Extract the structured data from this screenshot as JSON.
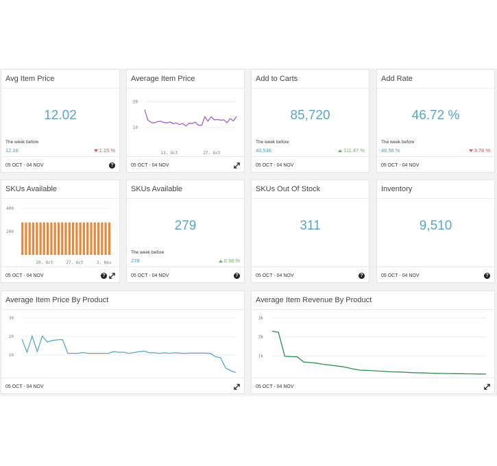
{
  "footer_range": "05 OCT - 04 NOV",
  "week_before_label": "The week before",
  "colors": {
    "accent": "#5aa6c8",
    "down": "#d9534f",
    "up": "#5cb85c",
    "purple": "#a35fd1",
    "orange": "#e8883a",
    "blue": "#5aa6c8",
    "green": "#2e8b4e"
  },
  "cards": {
    "avg_item_price_kpi": {
      "title": "Avg Item Price",
      "value": "12.02",
      "prev": "12.16",
      "delta": "1.15 %"
    },
    "average_item_price_line": {
      "title": "Average Item Price"
    },
    "add_to_carts": {
      "title": "Add to Carts",
      "value": "85,720",
      "prev": "40,536",
      "delta": "111.47 %"
    },
    "add_rate": {
      "title": "Add Rate",
      "value": "46.72 %",
      "prev": "48.56 %",
      "delta": "3.78 %"
    },
    "skus_available_bar": {
      "title": "SKUs Available"
    },
    "skus_available_kpi": {
      "title": "SKUs Available",
      "value": "279",
      "prev": "278",
      "delta": "0.36 %"
    },
    "skus_out_of_stock": {
      "title": "SKUs Out Of Stock",
      "value": "311"
    },
    "inventory": {
      "title": "Inventory",
      "value": "9,510"
    },
    "avg_price_by_product": {
      "title": "Average Item Price By Product"
    },
    "avg_revenue_by_product": {
      "title": "Average Item Revenue By Product"
    }
  },
  "chart_data": [
    {
      "id": "avg-item-price-line",
      "type": "line",
      "x_ticks": [
        "13. Oct",
        "27. Oct"
      ],
      "y_ticks": [
        10,
        20
      ],
      "ylim": [
        5,
        22
      ],
      "values": [
        17,
        13,
        12,
        11.8,
        12.3,
        12.5,
        12.0,
        11.8,
        12.2,
        11.5,
        11.8,
        11.2,
        11.6,
        10.6,
        11.7,
        11.6,
        12.1,
        10.9,
        10.9,
        14.2,
        12.5,
        14.2,
        13.0,
        13.1,
        12.9,
        13.0,
        11.9,
        13.5,
        12.6,
        14.3
      ]
    },
    {
      "id": "skus-available-bar",
      "type": "bar",
      "x_ticks": [
        "20. Oct",
        "27. Oct",
        "3. Nov"
      ],
      "y_ticks": [
        200,
        400
      ],
      "ylim": [
        0,
        400
      ],
      "values": [
        279,
        279,
        279,
        279,
        279,
        279,
        279,
        279,
        279,
        279,
        279,
        279,
        279,
        279,
        279,
        279,
        279,
        279,
        279,
        279,
        279,
        279,
        279,
        279,
        279
      ]
    },
    {
      "id": "avg-price-by-product",
      "type": "line",
      "y_ticks": [
        10,
        20,
        30
      ],
      "ylim": [
        0,
        30
      ],
      "values": [
        18.5,
        11.5,
        20.2,
        11.8,
        20.2,
        17.0,
        17.9,
        18.2,
        18.3,
        10.9,
        10.9,
        10.9,
        11.3,
        10.9,
        10.9,
        10.9,
        10.9,
        10.9,
        11.8,
        11.5,
        11.5,
        10.9,
        11.3,
        11.8,
        12.1,
        11.2,
        11.2,
        10.9,
        11.2,
        10.9,
        11.2,
        11.0,
        10.9,
        11.0,
        11.0,
        11.0,
        11.0,
        10.8,
        9.1,
        8.5,
        3.0,
        1.5,
        0.5
      ]
    },
    {
      "id": "avg-revenue-by-product",
      "type": "line",
      "y_ticks": [
        "1k",
        "2k",
        "3k"
      ],
      "ylim": [
        0,
        3000
      ],
      "values": [
        2300,
        2250,
        980,
        960,
        950,
        680,
        650,
        620,
        560,
        520,
        480,
        440,
        380,
        300,
        250,
        240,
        220,
        200,
        180,
        160,
        150,
        140,
        120,
        110,
        100,
        90,
        80,
        75,
        70,
        65,
        60,
        55,
        50,
        45,
        40
      ]
    }
  ]
}
